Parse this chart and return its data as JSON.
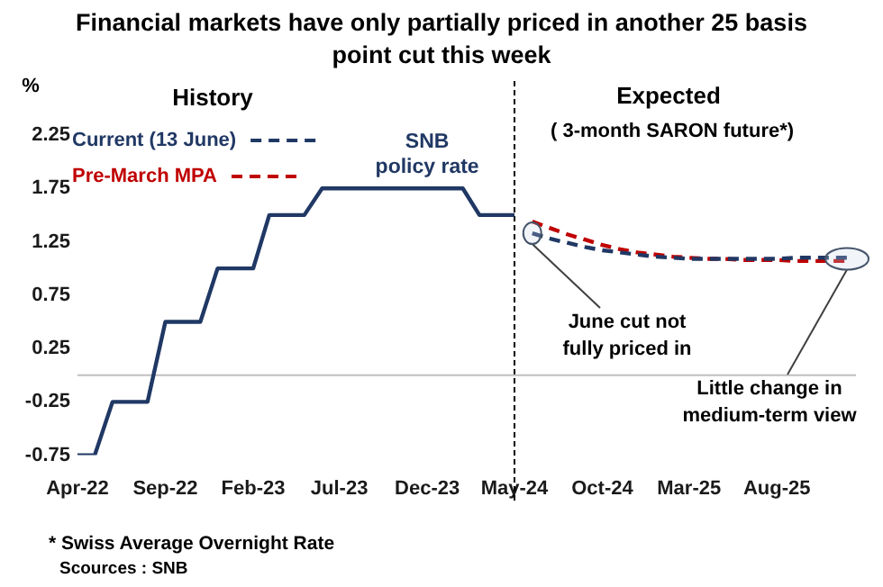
{
  "chart_data": {
    "type": "line",
    "title": "Financial markets have only partially priced in another 25 basis point cut this week",
    "ylabel": "%",
    "x": [
      "2022-04",
      "2022-05",
      "2022-06",
      "2022-07",
      "2022-08",
      "2022-09",
      "2022-10",
      "2022-11",
      "2022-12",
      "2023-01",
      "2023-02",
      "2023-03",
      "2023-04",
      "2023-05",
      "2023-06",
      "2023-07",
      "2023-08",
      "2023-09",
      "2023-10",
      "2023-11",
      "2023-12",
      "2024-01",
      "2024-02",
      "2024-03",
      "2024-04",
      "2024-05",
      "2024-06",
      "2024-07",
      "2024-08",
      "2024-09",
      "2024-10",
      "2024-11",
      "2024-12",
      "2025-01",
      "2025-02",
      "2025-03",
      "2025-04",
      "2025-05",
      "2025-06",
      "2025-07",
      "2025-08",
      "2025-09",
      "2025-10",
      "2025-11",
      "2025-12"
    ],
    "xlim": [
      "2022-04",
      "2025-12"
    ],
    "xticks": [
      {
        "value": "2022-04",
        "label": "Apr-22"
      },
      {
        "value": "2022-09",
        "label": "Sep-22"
      },
      {
        "value": "2023-02",
        "label": "Feb-23"
      },
      {
        "value": "2023-07",
        "label": "Jul-23"
      },
      {
        "value": "2023-12",
        "label": "Dec-23"
      },
      {
        "value": "2024-05",
        "label": "May-24"
      },
      {
        "value": "2024-10",
        "label": "Oct-24"
      },
      {
        "value": "2025-03",
        "label": "Mar-25"
      },
      {
        "value": "2025-08",
        "label": "Aug-25"
      }
    ],
    "series": [
      {
        "name": "SNB policy rate",
        "color": "#203864",
        "line_style": "solid",
        "values": [
          -0.75,
          -0.75,
          -0.25,
          -0.25,
          -0.25,
          0.5,
          0.5,
          0.5,
          1.0,
          1.0,
          1.0,
          1.5,
          1.5,
          1.5,
          1.75,
          1.75,
          1.75,
          1.75,
          1.75,
          1.75,
          1.75,
          1.75,
          1.75,
          1.5,
          1.5,
          1.5,
          null,
          null,
          null,
          null,
          null,
          null,
          null,
          null,
          null,
          null,
          null,
          null,
          null,
          null,
          null,
          null,
          null,
          null,
          null
        ]
      },
      {
        "name": "Current (13 June)",
        "color": "#203864",
        "line_style": "dashed",
        "values": [
          null,
          null,
          null,
          null,
          null,
          null,
          null,
          null,
          null,
          null,
          null,
          null,
          null,
          null,
          null,
          null,
          null,
          null,
          null,
          null,
          null,
          null,
          null,
          null,
          null,
          null,
          1.33,
          1.28,
          1.24,
          1.2,
          1.17,
          1.15,
          1.13,
          1.11,
          1.1,
          1.09,
          1.09,
          1.09,
          1.09,
          1.09,
          1.09,
          1.1,
          1.1,
          1.1,
          1.1
        ]
      },
      {
        "name": "Pre-March MPA",
        "color": "#c00000",
        "line_style": "dashed",
        "values": [
          null,
          null,
          null,
          null,
          null,
          null,
          null,
          null,
          null,
          null,
          null,
          null,
          null,
          null,
          null,
          null,
          null,
          null,
          null,
          null,
          null,
          null,
          null,
          null,
          null,
          null,
          1.44,
          1.38,
          1.32,
          1.27,
          1.22,
          1.18,
          1.15,
          1.13,
          1.11,
          1.1,
          1.09,
          1.09,
          1.08,
          1.08,
          1.08,
          1.07,
          1.07,
          1.07,
          1.07
        ]
      }
    ],
    "ylim": [
      -0.75,
      2.25
    ],
    "yticks": [
      -0.75,
      -0.25,
      0.25,
      0.75,
      1.25,
      1.75,
      2.25
    ],
    "grid": false,
    "legend": "top left",
    "marker": "none",
    "ref_lines": [
      {
        "axis": "x",
        "value": "2024-05",
        "color": "#000000",
        "line_style": "dashed"
      },
      {
        "axis": "y",
        "value": 0,
        "color": "#bfbfbf",
        "line_style": "solid"
      }
    ],
    "annotations": [
      "History",
      "Expected",
      "( 3-month SARON future*)",
      {
        "text": "June cut not fully priced in",
        "x": "2024-06",
        "y": 1.33
      },
      {
        "text": "Little change in medium-term view",
        "x": "2025-12",
        "y": 1.09
      },
      "* Swiss Average Overnight Rate",
      "Scources : SNB"
    ]
  }
}
